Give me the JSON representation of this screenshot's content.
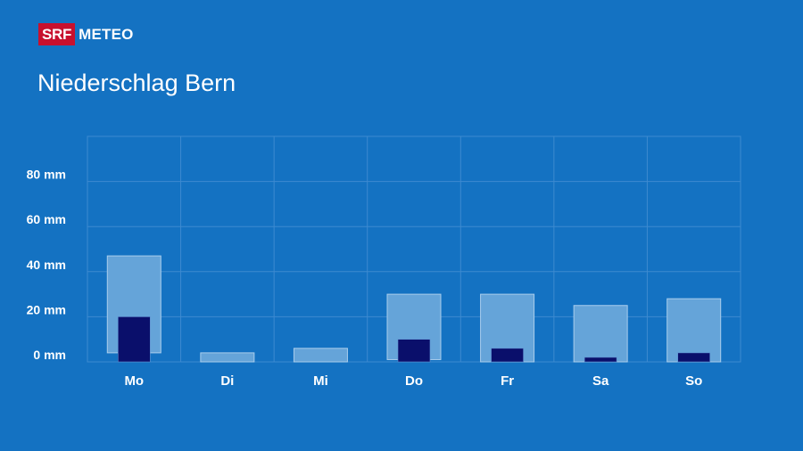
{
  "brand": {
    "badge": "SRF",
    "name": "METEO",
    "badge_color": "#c8102e"
  },
  "title": "Niederschlag Bern",
  "colors": {
    "background": "#1472c2",
    "range_bar": "#65a4d9",
    "range_bar_border": "#a9cdec",
    "value_bar": "#0a0f6b",
    "grid": "#3d8ad0"
  },
  "chart_data": {
    "type": "bar",
    "title": "Niederschlag Bern",
    "categories": [
      "Mo",
      "Di",
      "Mi",
      "Do",
      "Fr",
      "Sa",
      "So"
    ],
    "y_ticks": [
      0,
      20,
      40,
      60,
      80
    ],
    "y_tick_labels": [
      "0 mm",
      "20 mm",
      "40 mm",
      "60 mm",
      "80 mm"
    ],
    "ylim": [
      0,
      100
    ],
    "grid": true,
    "series": [
      {
        "kind": "range",
        "low": [
          4,
          0,
          0,
          1,
          0,
          0,
          0
        ],
        "high": [
          47,
          4,
          6,
          30,
          30,
          25,
          28
        ]
      },
      {
        "kind": "value",
        "values": [
          20,
          0,
          0,
          10,
          6,
          2,
          4
        ]
      }
    ]
  }
}
